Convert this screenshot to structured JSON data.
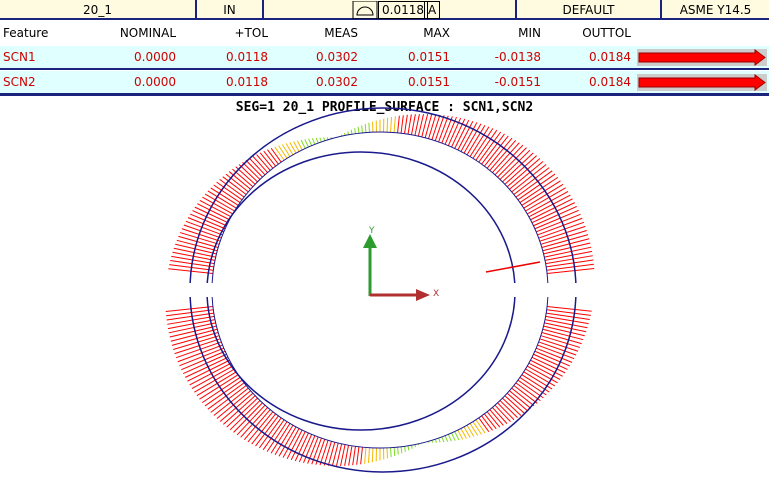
{
  "header": {
    "feature": "20_1",
    "units": "IN",
    "tolerance": "0.0118",
    "datum": "A",
    "alignment": "DEFAULT",
    "standard": "ASME Y14.5"
  },
  "table": {
    "columns": [
      "Feature",
      "NOMINAL",
      "+TOL",
      "MEAS",
      "MAX",
      "MIN",
      "OUTTOL"
    ],
    "rows": [
      [
        "SCN1",
        "0.0000",
        "0.0118",
        "0.0302",
        "0.0151",
        "-0.0138",
        "0.0184"
      ],
      [
        "SCN2",
        "0.0000",
        "0.0118",
        "0.0302",
        "0.0151",
        "-0.0151",
        "0.0184"
      ]
    ]
  },
  "graphic": {
    "title": "SEG=1 20_1 PROFILE_SURFACE : SCN1,SCN2",
    "x_axis": "X",
    "y_axis": "Y"
  }
}
